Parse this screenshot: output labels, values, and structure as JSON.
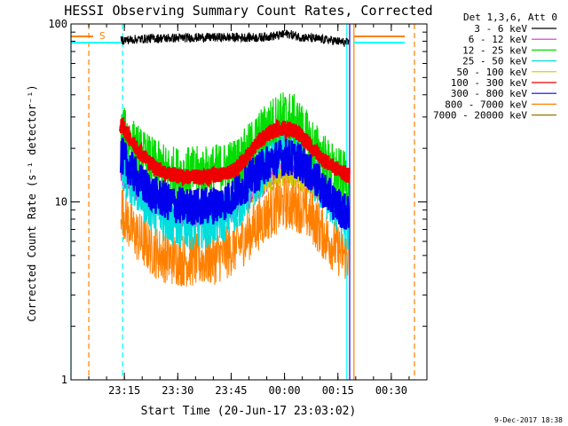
{
  "chart_data": {
    "type": "line",
    "title": "HESSI Observing Summary Count Rates, Corrected",
    "xlabel": "Start Time (20-Jun-17 23:03:02)",
    "ylabel": "Corrected Count Rate (s⁻¹ detector⁻¹)",
    "y_scale": "log",
    "ylim": [
      1,
      100
    ],
    "y_ticks": [
      {
        "v": 1,
        "label": "1"
      },
      {
        "v": 10,
        "label": "10"
      },
      {
        "v": 100,
        "label": "100"
      }
    ],
    "xlim_min": [
      -3,
      97
    ],
    "x_ticks": [
      {
        "m": 12,
        "label": "23:15"
      },
      {
        "m": 27,
        "label": "23:30"
      },
      {
        "m": 42,
        "label": "23:45"
      },
      {
        "m": 57,
        "label": "00:00"
      },
      {
        "m": 72,
        "label": "00:15"
      },
      {
        "m": 87,
        "label": "00:30"
      }
    ],
    "legend_title": "Det 1,3,6, Att 0",
    "legend_position": "top-right, outside plot",
    "saa_marker": "S",
    "footer_date": "9-Dec-2017 18:38",
    "series": [
      {
        "name": "3 - 6 keV",
        "color": "#000000",
        "x": [
          11,
          20,
          35,
          50,
          55,
          58,
          62,
          70,
          75
        ],
        "y": [
          81,
          83,
          84,
          84,
          86,
          88,
          84,
          81,
          78
        ]
      },
      {
        "name": "6 - 12 keV",
        "color": "#cc33cc",
        "x": [
          11,
          15,
          21,
          26,
          31,
          37,
          43,
          47,
          51,
          55,
          59,
          63,
          67,
          71,
          75
        ],
        "y": [
          14,
          11,
          9.5,
          8.5,
          8.2,
          8.3,
          9.0,
          10.5,
          12.5,
          14.5,
          15.0,
          13.5,
          11.5,
          9.5,
          8.0
        ]
      },
      {
        "name": "12 - 25 keV",
        "color": "#00dd00",
        "x": [
          11,
          13,
          15,
          18,
          21,
          24,
          27,
          31,
          35,
          39,
          43,
          46,
          49,
          52,
          55,
          57,
          59,
          61,
          64,
          67,
          70,
          72,
          75
        ],
        "y": [
          25,
          23,
          20,
          17.5,
          15.8,
          14.8,
          14.5,
          14.5,
          14.7,
          15.2,
          16.2,
          18.5,
          22,
          26,
          29,
          30,
          29.5,
          27,
          22,
          18.5,
          15.5,
          14.5,
          13
        ]
      },
      {
        "name": "25 - 50 keV",
        "color": "#00dddd",
        "x": [
          11,
          14,
          17,
          21,
          25,
          29,
          33,
          37,
          41,
          45,
          49,
          53,
          57,
          61,
          65,
          69,
          72,
          75
        ],
        "y": [
          16,
          13.5,
          11,
          9.0,
          8.0,
          7.6,
          7.7,
          7.9,
          8.6,
          10.5,
          13.5,
          17.5,
          20.5,
          19,
          14.5,
          11,
          9.0,
          7.5
        ]
      },
      {
        "name": "50 - 100 keV",
        "color": "#cccc00",
        "x": [
          48,
          52,
          55,
          58,
          61,
          64,
          67
        ],
        "y": [
          11,
          12.5,
          13.5,
          13.8,
          13.2,
          12,
          11
        ]
      },
      {
        "name": "100 - 300 keV",
        "color": "#ee0000",
        "x": [
          11,
          13,
          15,
          18,
          21,
          24,
          27,
          31,
          35,
          39,
          43,
          46,
          49,
          52,
          55,
          57,
          59,
          61,
          64,
          67,
          70,
          72,
          75
        ],
        "y": [
          27,
          24,
          20.5,
          17.5,
          15.5,
          14.5,
          14,
          13.8,
          13.8,
          14.2,
          15.2,
          17.5,
          21,
          24,
          25.5,
          26,
          25.5,
          24,
          21,
          18,
          16,
          15.2,
          14
        ]
      },
      {
        "name": "300 - 800 keV",
        "color": "#0000ee",
        "x": [
          11,
          14,
          17,
          21,
          25,
          29,
          33,
          37,
          41,
          45,
          49,
          53,
          57,
          61,
          65,
          69,
          72,
          75
        ],
        "y": [
          18.5,
          15,
          12.5,
          10.8,
          9.8,
          9.4,
          9.4,
          9.6,
          10.2,
          12,
          14.5,
          17,
          18,
          17,
          14,
          11,
          9.5,
          8.4
        ]
      },
      {
        "name": "800 - 7000 keV",
        "color": "#ff8000",
        "x": [
          11,
          14,
          17,
          21,
          25,
          29,
          33,
          37,
          41,
          45,
          49,
          53,
          57,
          61,
          65,
          69,
          72,
          75
        ],
        "y": [
          9.5,
          7.0,
          6.0,
          5.2,
          4.8,
          4.7,
          4.7,
          4.8,
          5.2,
          6.0,
          7.3,
          8.8,
          9.8,
          9.5,
          8.0,
          6.2,
          5.4,
          4.9
        ]
      },
      {
        "name": "7000 - 20000 keV",
        "color": "#997700",
        "x": [],
        "y": []
      }
    ],
    "markers": [
      {
        "name": "cyan-solid",
        "color": "#00ffff",
        "dash": false,
        "x": [
          -3,
          74.5
        ]
      },
      {
        "name": "orange-dash",
        "color": "#ff8000",
        "dash": true,
        "x": [
          2
        ]
      },
      {
        "name": "cyan-dash",
        "color": "#00ffff",
        "dash": true,
        "x": [
          11.5
        ]
      },
      {
        "name": "blue-solid",
        "color": "#0000ee",
        "dash": false,
        "x": [
          75.3
        ]
      },
      {
        "name": "orange-solid",
        "color": "#ff8000",
        "dash": false,
        "x": [
          76.5
        ]
      },
      {
        "name": "orange-dash-2",
        "color": "#ff8000",
        "dash": true,
        "x": [
          93.5
        ]
      }
    ]
  }
}
